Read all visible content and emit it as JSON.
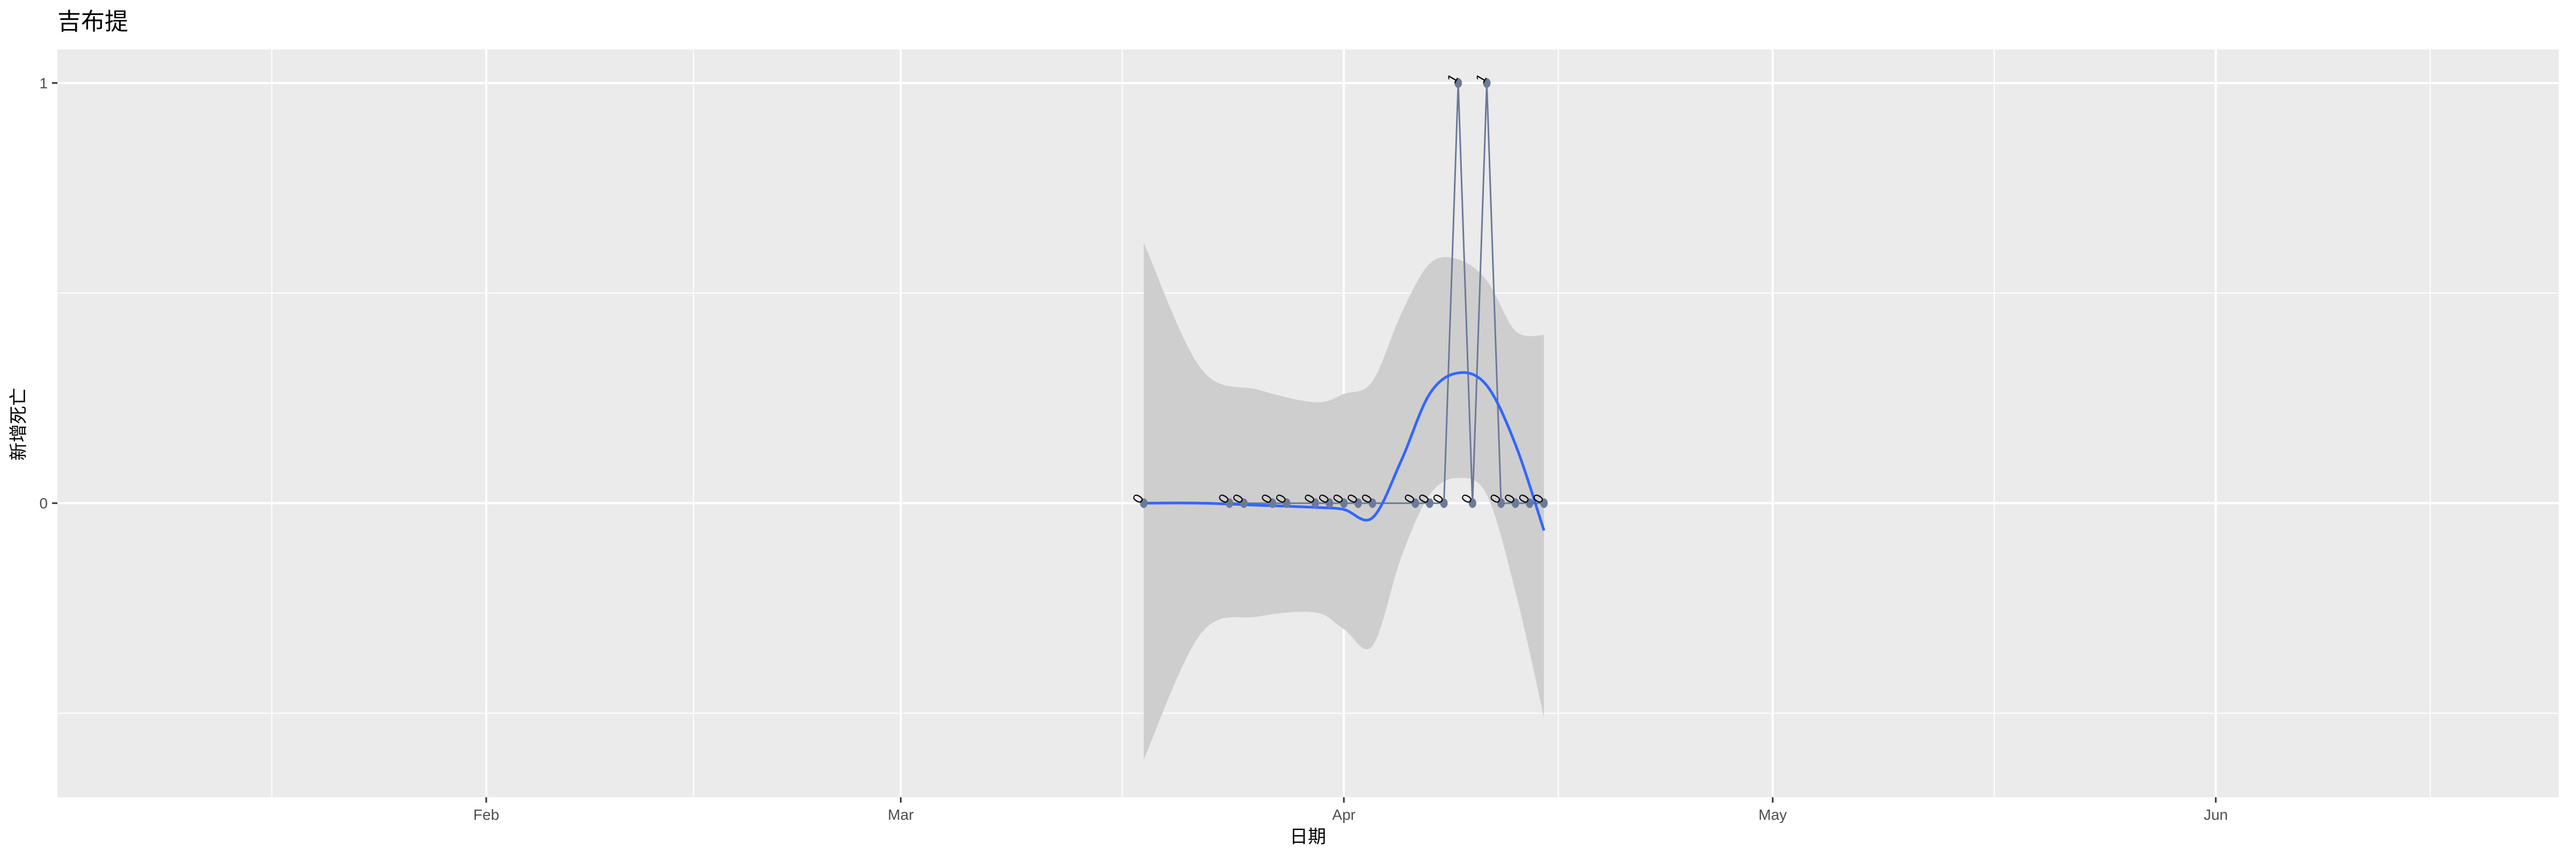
{
  "chart_data": {
    "type": "line",
    "title": "吉布提",
    "xlabel": "日期",
    "ylabel": "新增死亡",
    "xlim": [
      "2020-01-02",
      "2020-06-25"
    ],
    "ylim": [
      -0.7,
      1.08
    ],
    "x_ticks": [
      {
        "date": "2020-02-01",
        "label": "Feb"
      },
      {
        "date": "2020-03-01",
        "label": "Mar"
      },
      {
        "date": "2020-04-01",
        "label": "Apr"
      },
      {
        "date": "2020-05-01",
        "label": "May"
      },
      {
        "date": "2020-06-01",
        "label": "Jun"
      }
    ],
    "y_ticks": [
      {
        "value": 0,
        "label": "0"
      },
      {
        "value": 1,
        "label": "1"
      }
    ],
    "grid": true,
    "colors": {
      "panel": "#ebebeb",
      "grid": "#ffffff",
      "line": "#6b7a99",
      "point": "#6b7a99",
      "smooth": "#3366ff",
      "ribbon": "#cccccc"
    },
    "series": [
      {
        "x": [
          "2020-03-18",
          "2020-03-24",
          "2020-03-25",
          "2020-03-27",
          "2020-03-28",
          "2020-03-30",
          "2020-03-31",
          "2020-04-01",
          "2020-04-02",
          "2020-04-03",
          "2020-04-06",
          "2020-04-07",
          "2020-04-08",
          "2020-04-09",
          "2020-04-10",
          "2020-04-11",
          "2020-04-12",
          "2020-04-13",
          "2020-04-14",
          "2020-04-15"
        ],
        "y": [
          0,
          0,
          0,
          0,
          0,
          0,
          0,
          0,
          0,
          0,
          0,
          0,
          0,
          1,
          0,
          1,
          0,
          0,
          0,
          0
        ]
      }
    ],
    "smooth": {
      "x": [
        "2020-03-18",
        "2020-03-22",
        "2020-03-26",
        "2020-03-30",
        "2020-04-01",
        "2020-04-03",
        "2020-04-05",
        "2020-04-07",
        "2020-04-09",
        "2020-04-11",
        "2020-04-13",
        "2020-04-15"
      ],
      "fit": [
        0,
        0,
        -0.005,
        -0.01,
        -0.015,
        -0.035,
        0.1,
        0.26,
        0.31,
        0.28,
        0.14,
        -0.065
      ],
      "lower": [
        -0.61,
        -0.31,
        -0.27,
        -0.26,
        -0.3,
        -0.34,
        -0.13,
        0.02,
        0.06,
        0.02,
        -0.21,
        -0.51
      ],
      "upper": [
        0.62,
        0.32,
        0.27,
        0.24,
        0.26,
        0.29,
        0.45,
        0.57,
        0.58,
        0.53,
        0.41,
        0.4
      ]
    }
  }
}
